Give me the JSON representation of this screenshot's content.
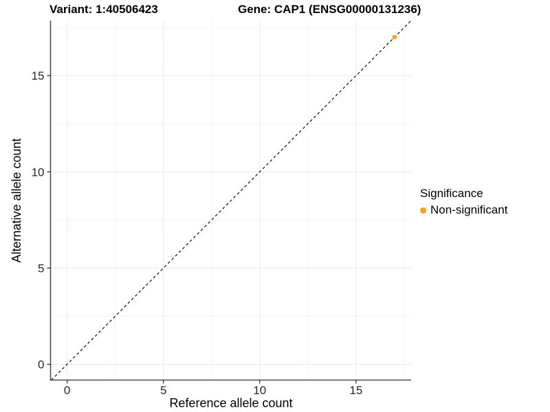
{
  "titles": {
    "left": "Variant: 1:40506423",
    "right": "Gene: CAP1 (ENSG00000131236)"
  },
  "legend": {
    "title": "Significance",
    "items": [
      {
        "label": "Non-significant",
        "color": "#F9A11E",
        "marker": "circle"
      }
    ]
  },
  "chart_data": {
    "type": "scatter",
    "xlabel": "Reference allele count",
    "ylabel": "Alternative allele count",
    "xlim": [
      -0.86,
      17.86
    ],
    "ylim": [
      -0.82,
      17.86
    ],
    "xticks": [
      0,
      5,
      10,
      15
    ],
    "yticks": [
      0,
      5,
      10,
      15
    ],
    "xminor": [
      2.5,
      7.5,
      12.5,
      17.5
    ],
    "yminor": [
      2.5,
      7.5,
      12.5,
      17.5
    ],
    "grid": true,
    "legend_position": "right",
    "series": [
      {
        "name": "Non-significant",
        "color": "#F9A11E",
        "points": [
          {
            "x": 17,
            "y": 17
          }
        ]
      }
    ],
    "identity_line": {
      "slope": 1,
      "intercept": 0,
      "style": "dashed",
      "color": "#000000"
    },
    "colors": {
      "grid_major": "#E9E9E9",
      "grid_minor": "#F3F3F3",
      "axis_line": "#4D4D4D",
      "tick_mark": "#333333",
      "background": "#FFFFFF"
    }
  }
}
